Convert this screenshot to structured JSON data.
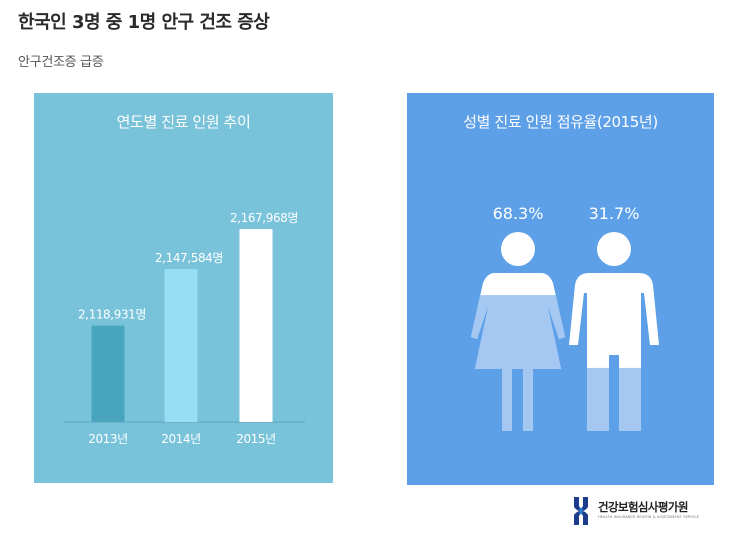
{
  "headline": "한국인 3명 중 1명 안구 건조 증상",
  "subhead": "안구건조증 급증",
  "chart_data": [
    {
      "type": "bar",
      "title": "연도별 진료 인원 추이",
      "categories": [
        "2013년",
        "2014년",
        "2015년"
      ],
      "values": [
        2118931,
        2147584,
        2167968
      ],
      "value_labels": [
        "2,118,931명",
        "2,147,584명",
        "2,167,968명"
      ],
      "colors": [
        "#48a5bd",
        "#98def3",
        "#ffffff"
      ],
      "background": "#78c3da",
      "grid": false
    },
    {
      "type": "pictogram",
      "title": "성별 진료 인원 점유율(2015년)",
      "categories": [
        "female",
        "male"
      ],
      "values": [
        68.3,
        31.7
      ],
      "value_labels": [
        "68.3%",
        "31.7%"
      ],
      "background": "#5ea0e8",
      "fill_color": "#a4c8f1",
      "base_color": "#ffffff"
    }
  ],
  "logo": {
    "name": "건강보험심사평가원",
    "sub": "HEALTH INSURANCE REVIEW & ASSESSMENT SERVICE",
    "colors": [
      "#1c3c8c",
      "#2a7fd0"
    ]
  }
}
